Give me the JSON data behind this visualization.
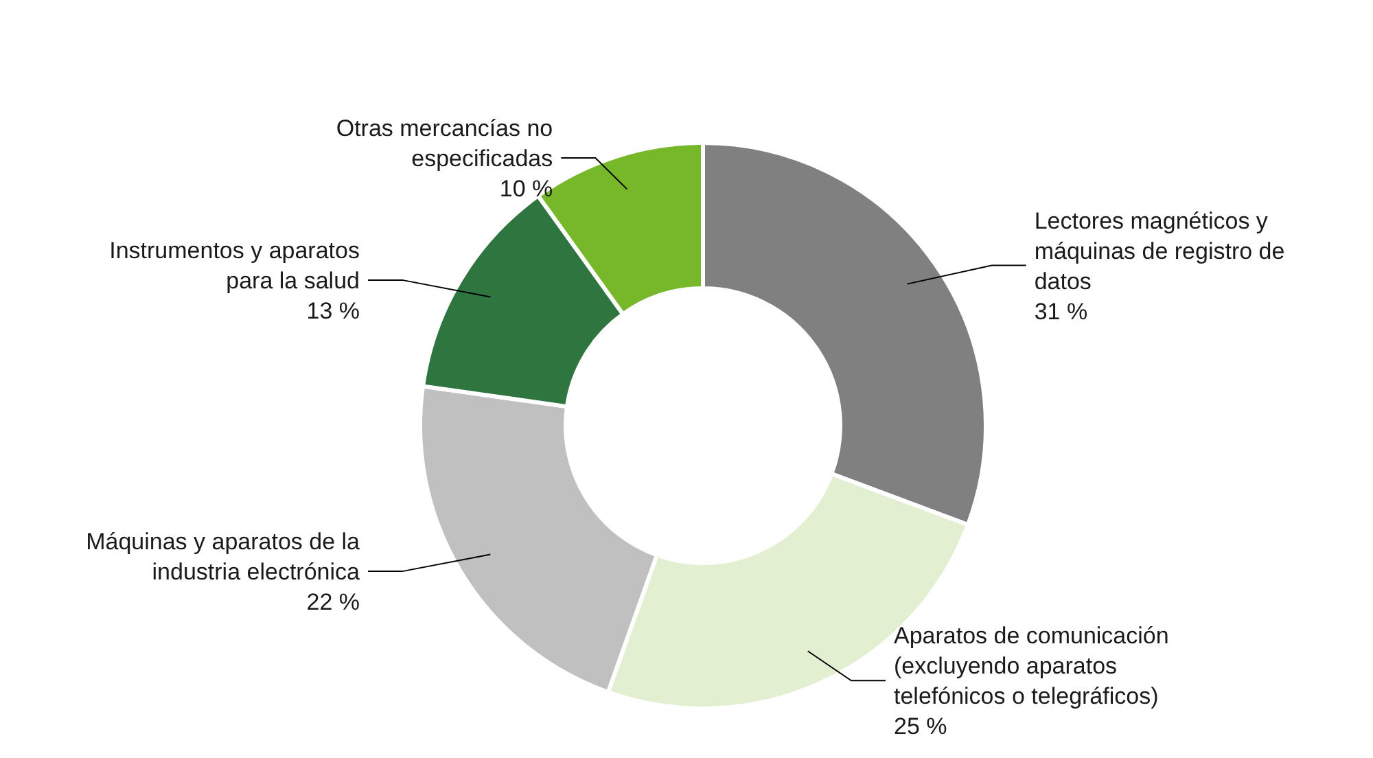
{
  "chart_data": {
    "type": "donut",
    "categories": [
      "Lectores magnéticos y máquinas de registro de datos",
      "Aparatos de comunicación (excluyendo aparatos telefónicos o telegráficos)",
      "Máquinas y aparatos de la industria electrónica",
      "Instrumentos y aparatos para la salud",
      "Otras mercancías no especificadas"
    ],
    "values": [
      31,
      25,
      22,
      13,
      10
    ],
    "value_labels": [
      "31 %",
      "25 %",
      "22 %",
      "13 %",
      "10 %"
    ],
    "colors": [
      "#808080",
      "#e2efd0",
      "#c0c0c0",
      "#2e7540",
      "#76b82a"
    ]
  }
}
